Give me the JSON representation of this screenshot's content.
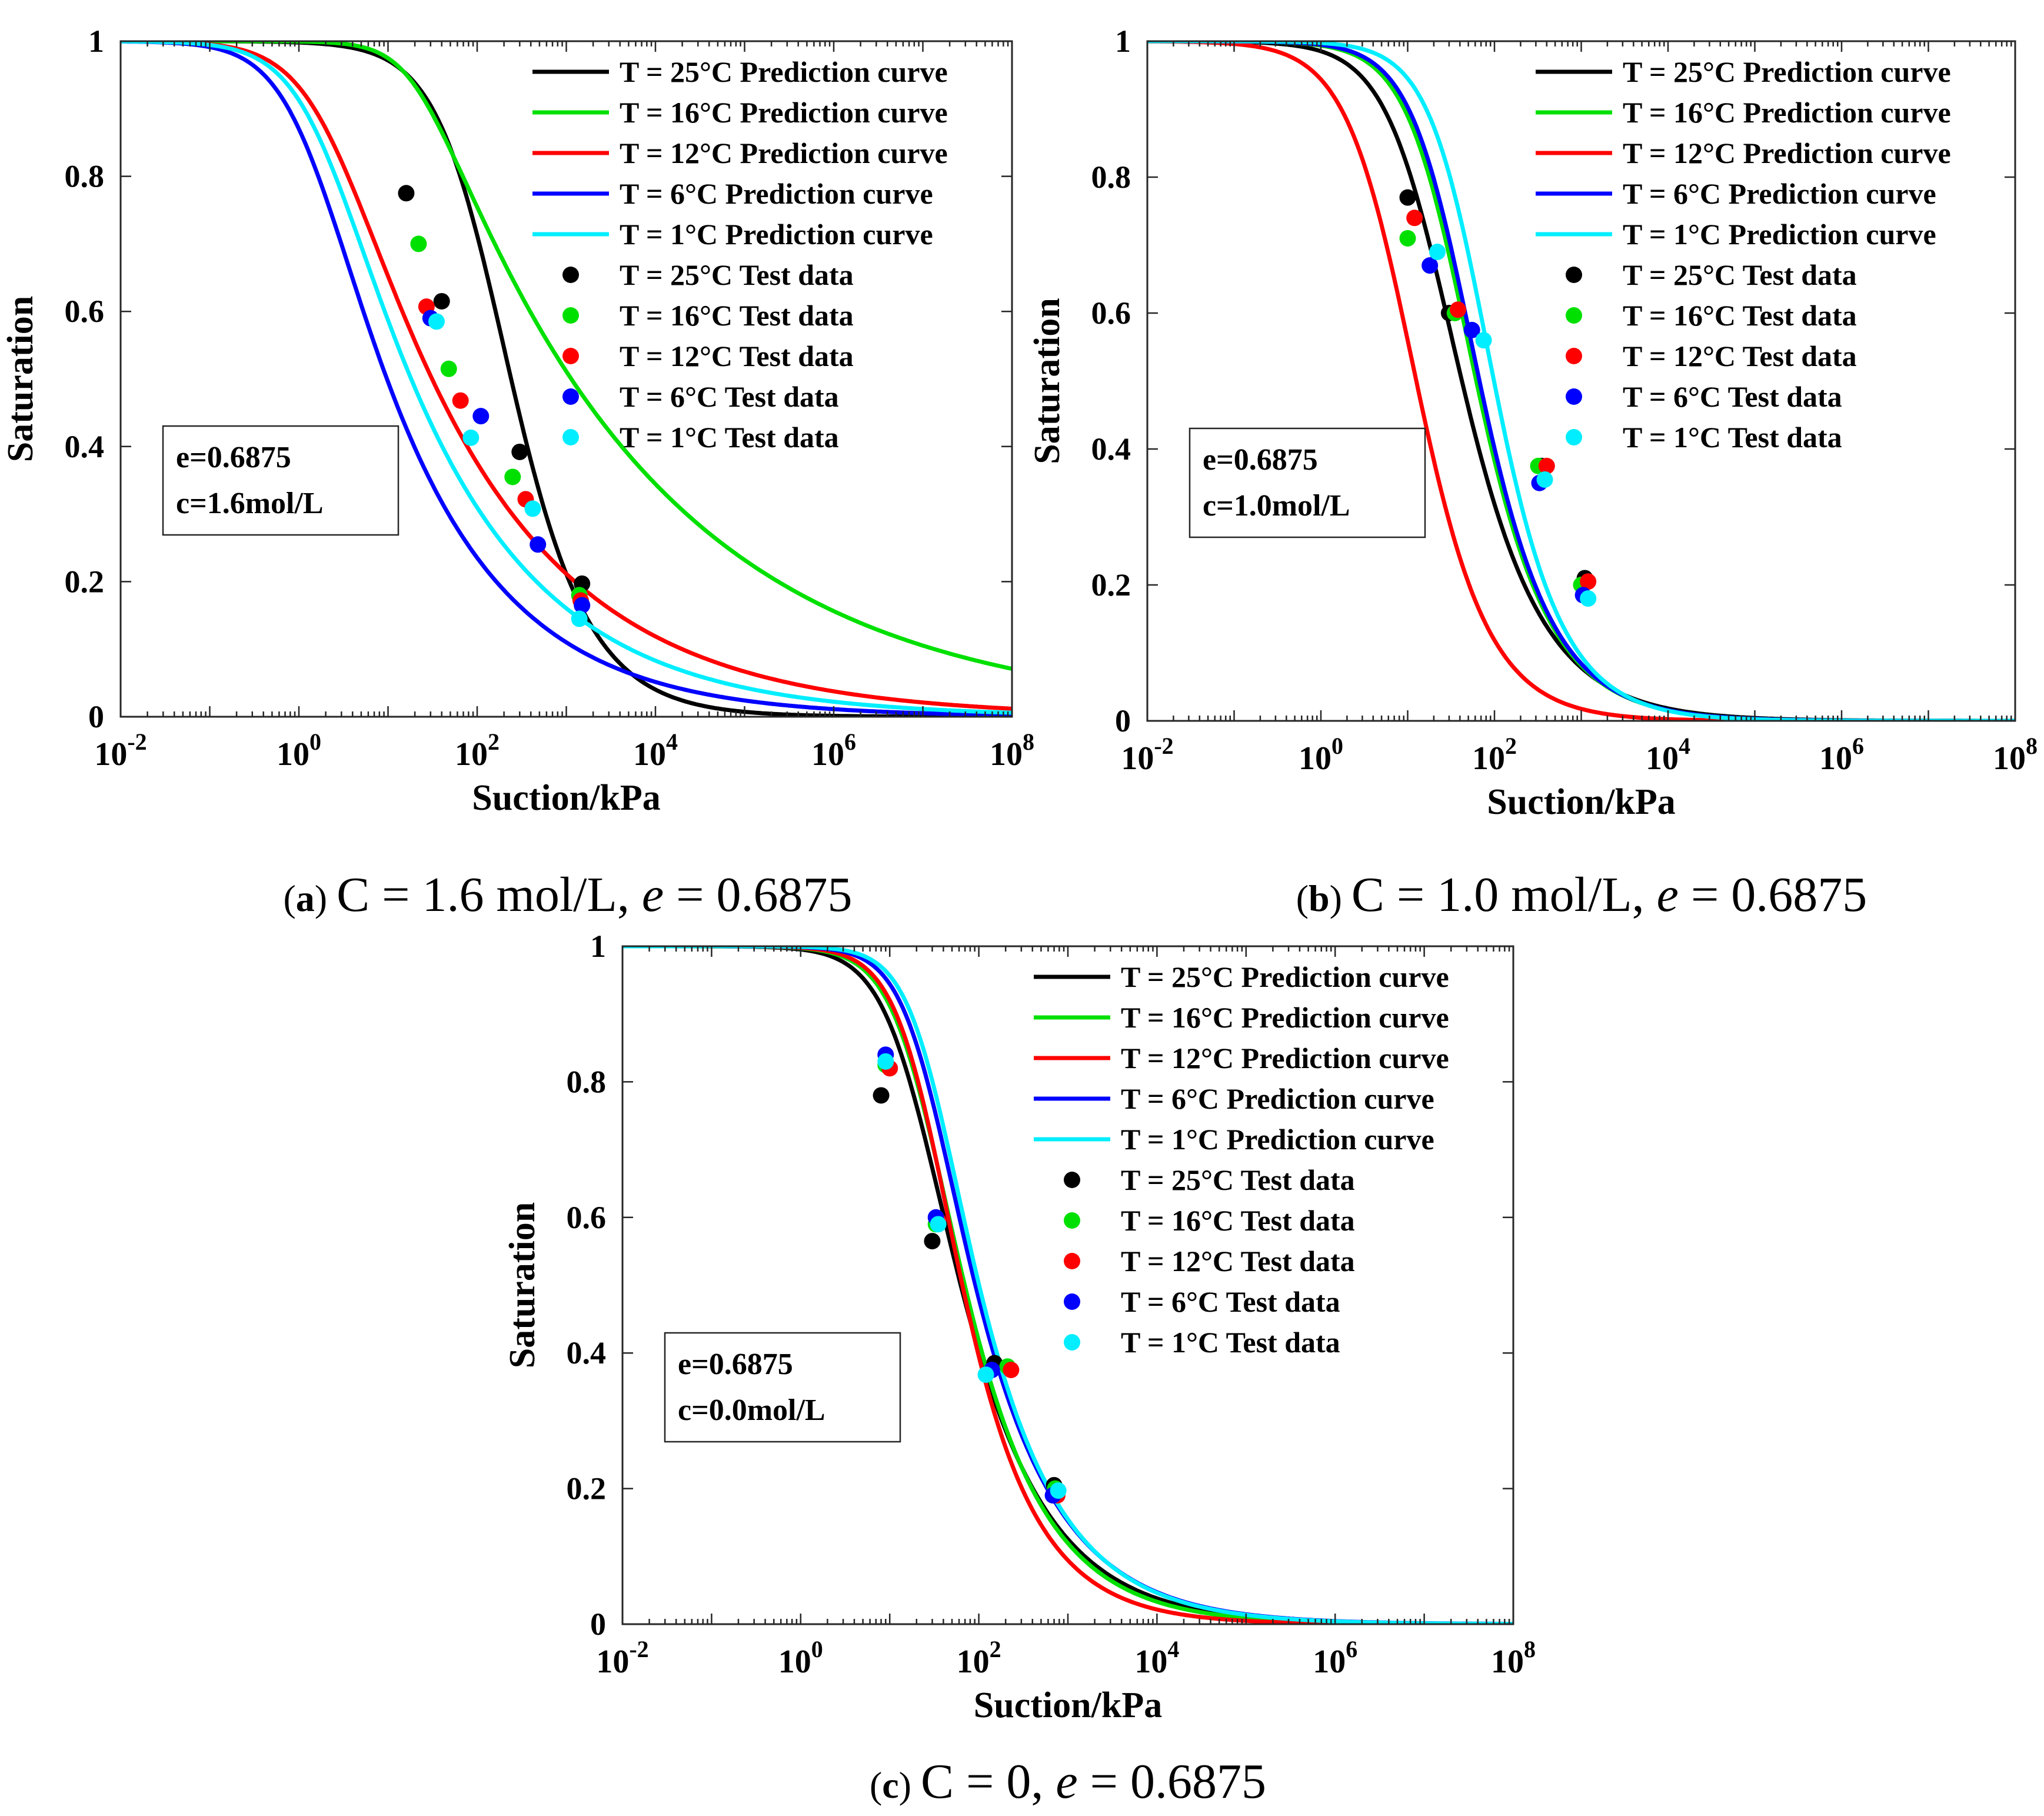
{
  "chart_data": [
    {
      "id": "a",
      "type": "line",
      "xlabel": "Suction/kPa",
      "ylabel": "Saturation",
      "xscale": "log",
      "xlim": [
        0.01,
        100000000
      ],
      "ylim": [
        0,
        1
      ],
      "xticks": [
        "10^-2",
        "10^0",
        "10^2",
        "10^4",
        "10^6",
        "10^8"
      ],
      "yticks": [
        "0",
        "0.2",
        "0.4",
        "0.6",
        "0.8",
        "1"
      ],
      "legend_position": "top-right",
      "annotation": [
        "e=0.6875",
        "c=1.6mol/L"
      ],
      "caption": {
        "label": "a",
        "text_pre": "C = 1.6 mol/L, ",
        "var": "e",
        "text_post": " = 0.6875"
      },
      "series": [
        {
          "name": "T = 25°C Prediction curve",
          "color": "#000000",
          "vg": {
            "alpha": 0.0075,
            "n": 1.18,
            "m": 0.63
          }
        },
        {
          "name": "T = 16°C Prediction curve",
          "color": "#00e000",
          "vg": {
            "alpha": 0.05,
            "n": 1.75,
            "m": 0.098
          }
        },
        {
          "name": "T = 12°C Prediction curve",
          "color": "#ff0000",
          "vg": {
            "alpha": 0.5,
            "n": 1.25,
            "m": 0.2
          }
        },
        {
          "name": "T = 6°C Prediction curve",
          "color": "#0000ff",
          "vg": {
            "alpha": 0.8,
            "n": 1.32,
            "m": 0.25
          }
        },
        {
          "name": "T = 1°C Prediction curve",
          "color": "#00eeff",
          "vg": {
            "alpha": 0.6,
            "n": 1.3,
            "m": 0.22
          }
        }
      ],
      "points": [
        {
          "name": "T = 25°C Test data",
          "color": "#000000",
          "x": [
            16,
            40,
            300,
            1500
          ],
          "y": [
            0.775,
            0.615,
            0.392,
            0.197
          ]
        },
        {
          "name": "T = 16°C Test data",
          "color": "#00e000",
          "x": [
            22,
            48,
            250,
            1400
          ],
          "y": [
            0.7,
            0.515,
            0.355,
            0.18
          ]
        },
        {
          "name": "T = 12°C Test data",
          "color": "#ff0000",
          "x": [
            27,
            65,
            350,
            1450
          ],
          "y": [
            0.607,
            0.468,
            0.322,
            0.172
          ]
        },
        {
          "name": "T = 6°C Test data",
          "color": "#0000ff",
          "x": [
            30,
            110,
            480,
            1500
          ],
          "y": [
            0.59,
            0.445,
            0.255,
            0.165
          ]
        },
        {
          "name": "T = 1°C Test data",
          "color": "#00eeff",
          "x": [
            35,
            85,
            420,
            1400
          ],
          "y": [
            0.585,
            0.413,
            0.308,
            0.145
          ]
        }
      ]
    },
    {
      "id": "b",
      "type": "line",
      "xlabel": "Suction/kPa",
      "ylabel": "Saturation",
      "xscale": "log",
      "xlim": [
        0.01,
        100000000
      ],
      "ylim": [
        0,
        1
      ],
      "xticks": [
        "10^-2",
        "10^0",
        "10^2",
        "10^4",
        "10^6",
        "10^8"
      ],
      "yticks": [
        "0",
        "0.2",
        "0.4",
        "0.6",
        "0.8",
        "1"
      ],
      "legend_position": "top-right",
      "annotation": [
        "e=0.6875",
        "c=1.0mol/L"
      ],
      "caption": {
        "label": "b",
        "text_pre": "C = 1.0 mol/L, ",
        "var": "e",
        "text_post": " = 0.6875"
      },
      "series": [
        {
          "name": "T = 25°C Prediction curve",
          "color": "#000000",
          "vg": {
            "alpha": 0.055,
            "n": 1.22,
            "m": 0.52
          }
        },
        {
          "name": "T = 16°C Prediction curve",
          "color": "#00e000",
          "vg": {
            "alpha": 0.033,
            "n": 1.3,
            "m": 0.55
          }
        },
        {
          "name": "T = 12°C Prediction curve",
          "color": "#ff0000",
          "vg": {
            "alpha": 0.12,
            "n": 1.17,
            "m": 0.72
          }
        },
        {
          "name": "T = 6°C Prediction curve",
          "color": "#0000ff",
          "vg": {
            "alpha": 0.03,
            "n": 1.32,
            "m": 0.55
          }
        },
        {
          "name": "T = 1°C Prediction curve",
          "color": "#00eeff",
          "vg": {
            "alpha": 0.018,
            "n": 1.35,
            "m": 0.6
          }
        }
      ],
      "points": [
        {
          "name": "T = 25°C Test data",
          "color": "#000000",
          "x": [
            10,
            30,
            350,
            1100
          ],
          "y": [
            0.77,
            0.6,
            0.375,
            0.21
          ]
        },
        {
          "name": "T = 16°C Test data",
          "color": "#00e000",
          "x": [
            10,
            35,
            320,
            1000
          ],
          "y": [
            0.71,
            0.6,
            0.375,
            0.2
          ]
        },
        {
          "name": "T = 12°C Test data",
          "color": "#ff0000",
          "x": [
            12,
            38,
            400,
            1200
          ],
          "y": [
            0.74,
            0.605,
            0.375,
            0.205
          ]
        },
        {
          "name": "T = 6°C Test data",
          "color": "#0000ff",
          "x": [
            18,
            55,
            330,
            1050
          ],
          "y": [
            0.67,
            0.575,
            0.35,
            0.185
          ]
        },
        {
          "name": "T = 1°C Test data",
          "color": "#00eeff",
          "x": [
            22,
            75,
            380,
            1200
          ],
          "y": [
            0.69,
            0.56,
            0.355,
            0.18
          ]
        }
      ]
    },
    {
      "id": "c",
      "type": "line",
      "xlabel": "Suction/kPa",
      "ylabel": "Saturation",
      "xscale": "log",
      "xlim": [
        0.01,
        100000000
      ],
      "ylim": [
        0,
        1
      ],
      "xticks": [
        "10^-2",
        "10^0",
        "10^2",
        "10^4",
        "10^6",
        "10^8"
      ],
      "yticks": [
        "0",
        "0.2",
        "0.4",
        "0.6",
        "0.8",
        "1"
      ],
      "legend_position": "top-right",
      "annotation": [
        "e=0.6875",
        "c=0.0mol/L"
      ],
      "caption": {
        "label": "c",
        "text_pre": "C = 0, ",
        "var": "e",
        "text_post": " = 0.6875"
      },
      "series": [
        {
          "name": "T = 25°C Prediction curve",
          "color": "#000000",
          "vg": {
            "alpha": 0.055,
            "n": 1.48,
            "m": 0.35
          }
        },
        {
          "name": "T = 16°C Prediction curve",
          "color": "#00e000",
          "vg": {
            "alpha": 0.045,
            "n": 1.55,
            "m": 0.36
          }
        },
        {
          "name": "T = 12°C Prediction curve",
          "color": "#ff0000",
          "vg": {
            "alpha": 0.04,
            "n": 1.6,
            "m": 0.4
          }
        },
        {
          "name": "T = 6°C Prediction curve",
          "color": "#0000ff",
          "vg": {
            "alpha": 0.04,
            "n": 1.7,
            "m": 0.3
          }
        },
        {
          "name": "T = 1°C Prediction curve",
          "color": "#00eeff",
          "vg": {
            "alpha": 0.035,
            "n": 1.75,
            "m": 0.3
          }
        }
      ],
      "points": [
        {
          "name": "T = 25°C Test data",
          "color": "#000000",
          "x": [
            8,
            30,
            150,
            700
          ],
          "y": [
            0.78,
            0.565,
            0.385,
            0.205
          ]
        },
        {
          "name": "T = 16°C Test data",
          "color": "#00e000",
          "x": [
            9,
            33,
            210,
            720
          ],
          "y": [
            0.825,
            0.59,
            0.38,
            0.2
          ]
        },
        {
          "name": "T = 12°C Test data",
          "color": "#ff0000",
          "x": [
            10,
            35,
            230,
            760
          ],
          "y": [
            0.82,
            0.595,
            0.375,
            0.19
          ]
        },
        {
          "name": "T = 6°C Test data",
          "color": "#0000ff",
          "x": [
            9,
            33,
            140,
            680
          ],
          "y": [
            0.84,
            0.6,
            0.375,
            0.19
          ]
        },
        {
          "name": "T = 1°C Test data",
          "color": "#00eeff",
          "x": [
            9,
            35,
            120,
            780
          ],
          "y": [
            0.83,
            0.59,
            0.368,
            0.197
          ]
        }
      ]
    }
  ]
}
